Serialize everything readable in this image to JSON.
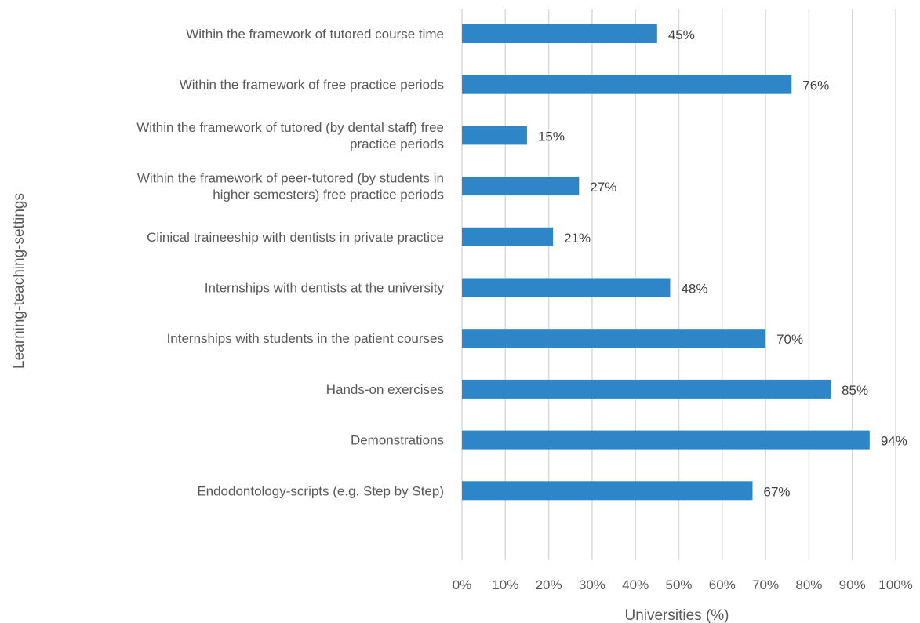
{
  "chart_data": {
    "type": "bar",
    "orientation": "horizontal",
    "title": "",
    "xlabel": "Universities (%)",
    "ylabel": "Learning-teaching-settings",
    "xlim": [
      0,
      100
    ],
    "x_ticks": [
      "0%",
      "10%",
      "20%",
      "30%",
      "40%",
      "50%",
      "60%",
      "70%",
      "80%",
      "90%",
      "100%"
    ],
    "grid": "vertical",
    "bar_color": "#2E86C9",
    "categories": [
      [
        "Within the framework of tutored course time"
      ],
      [
        "Within the framework of free practice periods"
      ],
      [
        "Within the framework of tutored (by dental staff) free",
        "practice periods"
      ],
      [
        "Within the framework of peer-tutored (by students in",
        "higher semesters) free practice periods"
      ],
      [
        "Clinical traineeship with dentists in private practice"
      ],
      [
        "Internships with dentists at the university"
      ],
      [
        "Internships with students in the patient courses"
      ],
      [
        "Hands-on exercises"
      ],
      [
        "Demonstrations"
      ],
      [
        "Endodontology-scripts (e.g. Step by Step)"
      ]
    ],
    "values": [
      45,
      76,
      15,
      27,
      21,
      48,
      70,
      85,
      94,
      67
    ],
    "data_labels": [
      "45%",
      "76%",
      "15%",
      "27%",
      "21%",
      "48%",
      "70%",
      "85%",
      "94%",
      "67%"
    ]
  }
}
